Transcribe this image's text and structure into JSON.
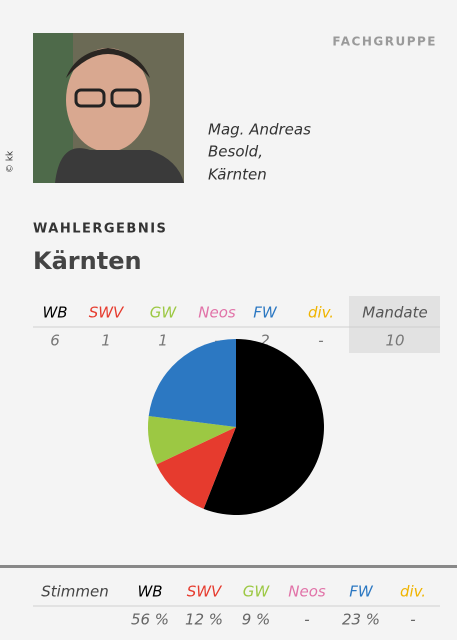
{
  "header": {
    "label": "FACHGRUPPE",
    "photo_credit": "© kk",
    "caption": [
      "Mag. Andreas",
      "Besold,",
      "Kärnten"
    ]
  },
  "section": {
    "label": "WAHLERGEBNIS",
    "title": "Kärnten"
  },
  "mandates": {
    "values": [
      6,
      1,
      1,
      "-",
      2,
      "-"
    ],
    "total_label": "Mandate",
    "total": 10
  },
  "chart_data": {
    "type": "pie",
    "row_label": "Stimmen",
    "categories": [
      "WB",
      "SWV",
      "GW",
      "Neos",
      "FW",
      "div."
    ],
    "values": [
      56,
      12,
      9,
      null,
      23,
      null
    ],
    "value_labels": [
      "56 %",
      "12 %",
      "9 %",
      "-",
      "23 %",
      "-"
    ],
    "colors": [
      "#000000",
      "#e63b2e",
      "#9cc843",
      "#e173a8",
      "#2c78c2",
      "#f0b400"
    ]
  }
}
